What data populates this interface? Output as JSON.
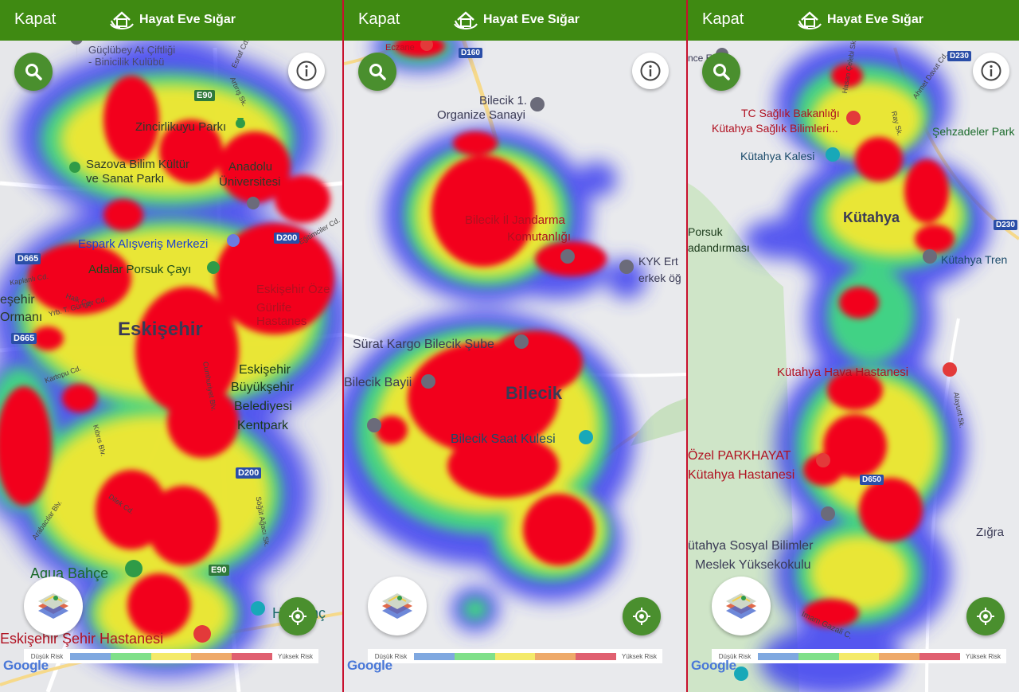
{
  "colors": {
    "header": "#3f8a12",
    "button_green": "#4a8f2e",
    "divider": "#c8102e",
    "risk_scale": [
      "#7fa8e0",
      "#80e08a",
      "#f4ea6a",
      "#eeaa6a",
      "#e06070"
    ]
  },
  "header": {
    "close_label": "Kapat",
    "app_name": "Hayat Eve Sığar",
    "logo_icon": "house-hands-logo-icon"
  },
  "legend": {
    "low_label": "Düşük Risk",
    "high_label": "Yüksek Risk"
  },
  "icons": {
    "search": "search-icon",
    "info": "info-icon",
    "locate": "my-location-icon",
    "layers": "map-layers-icon"
  },
  "attribution": "Google",
  "panels": [
    {
      "city": "Eskişehir",
      "labels": [
        "Güçlübey At Çiftliği",
        "- Binicilik Kulübü",
        "Zincirlikuyu Parkı",
        "Sazova Bilim Kültür",
        "ve Sanat Parkı",
        "Anadolu",
        "Üniversitesi",
        "Espark Alışveriş Merkezi",
        "Adalar Porsuk Çayı",
        "Eskişehir Öze",
        "Gürlife Hastanes",
        "Eskişehir",
        "Büyükşehir",
        "Belediyesi",
        "Kentpark",
        "Aqua Bahçe",
        "Eskişehir Şehir Hastanesi",
        "Ha  bahç",
        "eşehir",
        "Ormanı"
      ],
      "streets": [
        "Kaplanlı Cd.",
        "Halk Cd.",
        "Yrb. T. Güngör Cd.",
        "Kartopu Cd.",
        "Kıbrıs Blv.",
        "Arabacılar Blv.",
        "Dilek Cd.",
        "Cumhuriyet Blv.",
        "Söğüt Ağacı Sk.",
        "Esnaf Cd.",
        "Artırış Sk.",
        "Eğitimciler Cd."
      ],
      "road_shields": [
        "D665",
        "D665",
        "D200",
        "D200",
        "E90",
        "E90"
      ]
    },
    {
      "city": "Bilecik",
      "labels": [
        "Eczane",
        "Bilecik 1.",
        "Organize Sanayi",
        "Bilecik İl Jandarma",
        "Komutanlığı",
        "KYK Ert",
        "erkek öğ",
        "Sürat Kargo Bilecik Şube",
        "Bilecik Bayii",
        "Bilecik Saat Kulesi"
      ],
      "streets": [],
      "road_shields": [
        "D160"
      ]
    },
    {
      "city": "Kütahya",
      "labels": [
        "nce Evi",
        "TC Sağlık Bakanlığı",
        "Kütahya Sağlık Bilimleri...",
        "Şehzadeler Park",
        "Kütahya Kalesi",
        "Porsuk",
        "adandırması",
        "Kütahya Tren",
        "Kütahya Hava Hastanesi",
        "Özel PARKHAYAT",
        "Kütahya Hastanesi",
        "Zığra",
        "ütahya Sosyal Bilimler",
        "Meslek Yüksekokulu",
        "Imam Gazali C."
      ],
      "streets": [
        "Hasan Çelebi Sk.",
        "Alayunt Sk.",
        "Ray Sk.",
        "Ahmet Davut Cd."
      ],
      "road_shields": [
        "D230",
        "D230",
        "D650"
      ]
    }
  ]
}
